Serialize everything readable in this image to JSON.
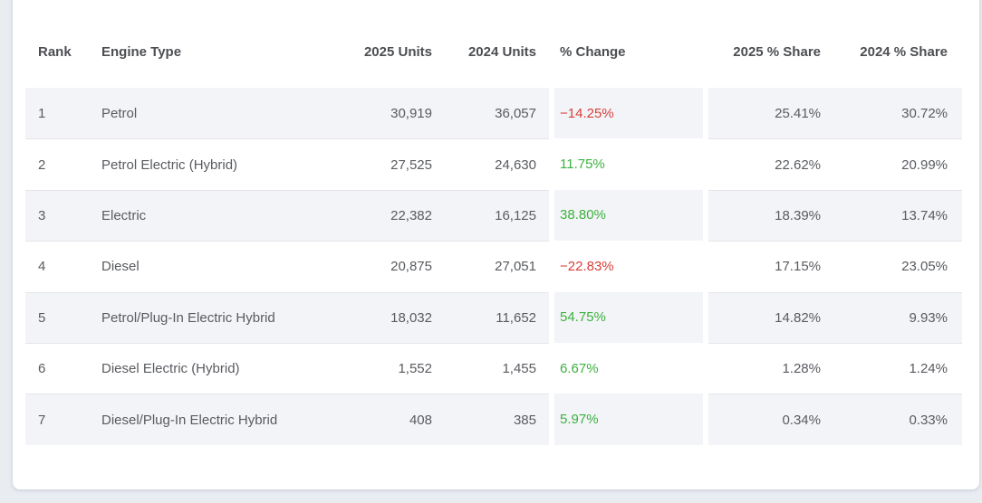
{
  "colors": {
    "page_background": "#e9edf2",
    "card_background": "#ffffff",
    "row_alternate": "#f3f4f7",
    "divider": "#e4e5e9",
    "header_text": "#4c4e52",
    "body_text": "#595b60",
    "positive_change": "#3cb13f",
    "negative_change": "#d63f3a"
  },
  "table": {
    "columns": [
      {
        "key": "rank",
        "label": "Rank",
        "align": "left"
      },
      {
        "key": "engine",
        "label": "Engine Type",
        "align": "left"
      },
      {
        "key": "u2025",
        "label": "2025 Units",
        "align": "right"
      },
      {
        "key": "u2024",
        "label": "2024 Units",
        "align": "right"
      },
      {
        "key": "change",
        "label": "% Change",
        "align": "left"
      },
      {
        "key": "s2025",
        "label": "2025 % Share",
        "align": "right"
      },
      {
        "key": "s2024",
        "label": "2024 % Share",
        "align": "right"
      }
    ],
    "rows": [
      {
        "rank": "1",
        "engine": "Petrol",
        "u2025": "30,919",
        "u2024": "36,057",
        "change": "−14.25%",
        "trend": "negative",
        "s2025": "25.41%",
        "s2024": "30.72%"
      },
      {
        "rank": "2",
        "engine": "Petrol Electric (Hybrid)",
        "u2025": "27,525",
        "u2024": "24,630",
        "change": "11.75%",
        "trend": "positive",
        "s2025": "22.62%",
        "s2024": "20.99%"
      },
      {
        "rank": "3",
        "engine": "Electric",
        "u2025": "22,382",
        "u2024": "16,125",
        "change": "38.80%",
        "trend": "positive",
        "s2025": "18.39%",
        "s2024": "13.74%"
      },
      {
        "rank": "4",
        "engine": "Diesel",
        "u2025": "20,875",
        "u2024": "27,051",
        "change": "−22.83%",
        "trend": "negative",
        "s2025": "17.15%",
        "s2024": "23.05%"
      },
      {
        "rank": "5",
        "engine": "Petrol/Plug-In Electric Hybrid",
        "u2025": "18,032",
        "u2024": "11,652",
        "change": "54.75%",
        "trend": "positive",
        "s2025": "14.82%",
        "s2024": "9.93%"
      },
      {
        "rank": "6",
        "engine": "Diesel Electric (Hybrid)",
        "u2025": "1,552",
        "u2024": "1,455",
        "change": "6.67%",
        "trend": "positive",
        "s2025": "1.28%",
        "s2024": "1.24%"
      },
      {
        "rank": "7",
        "engine": "Diesel/Plug-In Electric Hybrid",
        "u2025": "408",
        "u2024": "385",
        "change": "5.97%",
        "trend": "positive",
        "s2025": "0.34%",
        "s2024": "0.33%"
      }
    ]
  },
  "chart_data": {
    "type": "table",
    "title": "",
    "columns": [
      "Rank",
      "Engine Type",
      "2025 Units",
      "2024 Units",
      "% Change",
      "2025 % Share",
      "2024 % Share"
    ],
    "rows": [
      [
        1,
        "Petrol",
        30919,
        36057,
        -14.25,
        25.41,
        30.72
      ],
      [
        2,
        "Petrol Electric (Hybrid)",
        27525,
        24630,
        11.75,
        22.62,
        20.99
      ],
      [
        3,
        "Electric",
        22382,
        16125,
        38.8,
        18.39,
        13.74
      ],
      [
        4,
        "Diesel",
        20875,
        27051,
        -22.83,
        17.15,
        23.05
      ],
      [
        5,
        "Petrol/Plug-In Electric Hybrid",
        18032,
        11652,
        54.75,
        14.82,
        9.93
      ],
      [
        6,
        "Diesel Electric (Hybrid)",
        1552,
        1455,
        6.67,
        1.28,
        1.24
      ],
      [
        7,
        "Diesel/Plug-In Electric Hybrid",
        408,
        385,
        5.97,
        0.34,
        0.33
      ]
    ],
    "notes": "Percent change cells colored green when positive, red when negative; odd rows shaded light gray"
  }
}
